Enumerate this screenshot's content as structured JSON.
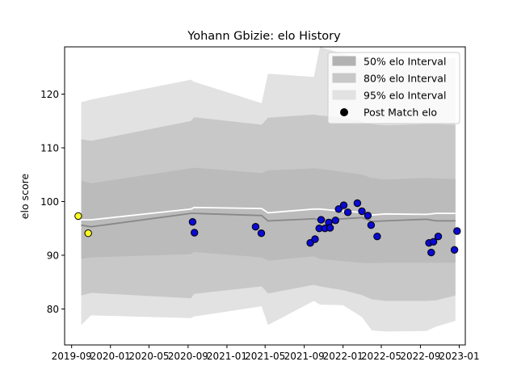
{
  "chart_data": {
    "type": "area",
    "title": "Yohann Gbizie: elo History",
    "xlabel": "",
    "ylabel": "elo score",
    "xlim": [
      "2019-08-10",
      "2023-01-20"
    ],
    "ylim": [
      73.3,
      128.8
    ],
    "x_ticks": [
      "2019-09",
      "2020-01",
      "2020-05",
      "2020-09",
      "2021-01",
      "2021-05",
      "2021-09",
      "2022-01",
      "2022-05",
      "2022-09",
      "2023-01"
    ],
    "y_ticks": [
      80,
      90,
      100,
      110,
      120
    ],
    "grid": false,
    "legend_position": "top-right",
    "legend": [
      {
        "label": "50% elo Interval",
        "kind": "patch",
        "color": "#b2b2b2"
      },
      {
        "label": "80% elo Interval",
        "kind": "patch",
        "color": "#c8c8c8"
      },
      {
        "label": "95% elo Interval",
        "kind": "patch",
        "color": "#e2e2e2"
      },
      {
        "label": "Post Match elo",
        "kind": "marker",
        "color": "#000000"
      }
    ],
    "colors": {
      "band50": "#b2b2b2",
      "band80": "#c8c8c8",
      "band95": "#e2e2e2",
      "mean_line": "#888888",
      "upper_line": "#ffffff",
      "point_normal": "#0a0ad2",
      "point_highlight": "#ffff22",
      "marker_edge": "#000000"
    },
    "bands": {
      "dates": [
        "2019-10-01",
        "2019-11-01",
        "2020-09-10",
        "2020-09-20",
        "2021-04-20",
        "2021-05-10",
        "2021-10-01",
        "2021-10-20",
        "2022-01-01",
        "2022-03-01",
        "2022-04-01",
        "2022-05-15",
        "2022-09-20",
        "2022-10-20",
        "2022-12-20"
      ],
      "upper95": [
        118.5,
        119.0,
        122.7,
        122.3,
        118.3,
        123.8,
        123.2,
        128.8,
        127.5,
        126.5,
        125.7,
        125.7,
        125.7,
        126.2,
        126.8
      ],
      "upper80": [
        111.6,
        111.3,
        115.0,
        115.7,
        114.3,
        115.6,
        116.2,
        116.0,
        115.7,
        114.9,
        114.4,
        114.2,
        114.4,
        114.4,
        114.3
      ],
      "upper50": [
        103.9,
        103.4,
        106.2,
        106.3,
        105.3,
        105.8,
        106.2,
        106.1,
        105.5,
        105.0,
        104.4,
        104.1,
        104.4,
        104.3,
        104.2
      ],
      "mean": [
        95.6,
        95.3,
        97.8,
        97.8,
        97.4,
        96.4,
        96.8,
        96.5,
        96.8,
        97.0,
        96.3,
        96.4,
        96.7,
        96.4,
        96.4
      ],
      "lower50": [
        89.3,
        89.6,
        90.2,
        90.6,
        89.6,
        89.0,
        89.8,
        89.3,
        88.9,
        88.6,
        88.5,
        88.6,
        88.6,
        88.6,
        88.6
      ],
      "lower80": [
        82.5,
        83.0,
        82.0,
        82.8,
        84.2,
        82.9,
        84.5,
        84.2,
        83.5,
        82.6,
        81.8,
        81.5,
        81.5,
        81.6,
        82.5
      ],
      "lower95": [
        77.0,
        78.8,
        78.3,
        78.6,
        80.5,
        77.0,
        81.5,
        80.8,
        80.7,
        78.5,
        76.0,
        75.8,
        75.9,
        76.7,
        77.8
      ],
      "upper_line": [
        96.6,
        96.6,
        98.6,
        98.9,
        98.7,
        97.9,
        98.6,
        98.6,
        98.2,
        98.0,
        97.5,
        97.7,
        97.6,
        97.8,
        97.8
      ]
    },
    "points": [
      {
        "date": "2019-09-22",
        "value": 97.3,
        "highlight": true
      },
      {
        "date": "2019-10-23",
        "value": 94.1,
        "highlight": true
      },
      {
        "date": "2020-09-15",
        "value": 96.2,
        "highlight": false
      },
      {
        "date": "2020-09-21",
        "value": 94.2,
        "highlight": false
      },
      {
        "date": "2021-04-01",
        "value": 95.3,
        "highlight": false
      },
      {
        "date": "2021-04-19",
        "value": 94.1,
        "highlight": false
      },
      {
        "date": "2021-09-20",
        "value": 92.3,
        "highlight": false
      },
      {
        "date": "2021-10-05",
        "value": 93.0,
        "highlight": false
      },
      {
        "date": "2021-10-18",
        "value": 95.0,
        "highlight": false
      },
      {
        "date": "2021-10-24",
        "value": 96.6,
        "highlight": false
      },
      {
        "date": "2021-11-05",
        "value": 95.0,
        "highlight": false
      },
      {
        "date": "2021-11-17",
        "value": 96.1,
        "highlight": false
      },
      {
        "date": "2021-11-21",
        "value": 95.1,
        "highlight": false
      },
      {
        "date": "2021-12-08",
        "value": 96.5,
        "highlight": false
      },
      {
        "date": "2021-12-18",
        "value": 98.6,
        "highlight": false
      },
      {
        "date": "2022-01-03",
        "value": 99.3,
        "highlight": false
      },
      {
        "date": "2022-01-16",
        "value": 98.0,
        "highlight": false
      },
      {
        "date": "2022-02-15",
        "value": 99.7,
        "highlight": false
      },
      {
        "date": "2022-03-01",
        "value": 98.2,
        "highlight": false
      },
      {
        "date": "2022-03-20",
        "value": 97.4,
        "highlight": false
      },
      {
        "date": "2022-03-30",
        "value": 95.6,
        "highlight": false
      },
      {
        "date": "2022-04-18",
        "value": 93.5,
        "highlight": false
      },
      {
        "date": "2022-09-28",
        "value": 92.3,
        "highlight": false
      },
      {
        "date": "2022-10-05",
        "value": 90.5,
        "highlight": false
      },
      {
        "date": "2022-10-12",
        "value": 92.5,
        "highlight": false
      },
      {
        "date": "2022-10-27",
        "value": 93.5,
        "highlight": false
      },
      {
        "date": "2022-12-17",
        "value": 91.0,
        "highlight": false
      },
      {
        "date": "2022-12-25",
        "value": 94.5,
        "highlight": false
      }
    ]
  }
}
